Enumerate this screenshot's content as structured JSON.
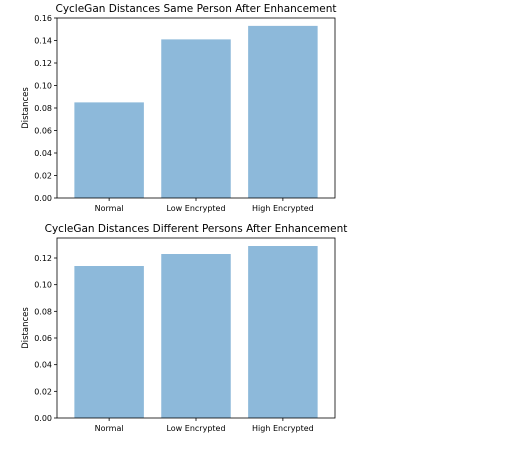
{
  "chart_data": [
    {
      "type": "bar",
      "title": "CycleGan Distances Same Person After Enhancement",
      "xlabel": "",
      "ylabel": "Distances",
      "categories": [
        "Normal",
        "Low Encrypted",
        "High Encrypted"
      ],
      "values": [
        0.085,
        0.141,
        0.153
      ],
      "ylim": [
        0,
        0.16
      ],
      "yticks": [
        0.0,
        0.02,
        0.04,
        0.06,
        0.08,
        0.1,
        0.12,
        0.14,
        0.16
      ],
      "ytick_labels": [
        "0.00",
        "0.02",
        "0.04",
        "0.06",
        "0.08",
        "0.10",
        "0.12",
        "0.14",
        "0.16"
      ],
      "bar_color": "#8db9da",
      "grid": false,
      "legend": "none"
    },
    {
      "type": "bar",
      "title": "CycleGan Distances Different Persons After Enhancement",
      "xlabel": "",
      "ylabel": "Distances",
      "categories": [
        "Normal",
        "Low Encrypted",
        "High Encrypted"
      ],
      "values": [
        0.114,
        0.123,
        0.129
      ],
      "ylim": [
        0,
        0.135
      ],
      "yticks": [
        0.0,
        0.02,
        0.04,
        0.06,
        0.08,
        0.1,
        0.12
      ],
      "ytick_labels": [
        "0.00",
        "0.02",
        "0.04",
        "0.06",
        "0.08",
        "0.10",
        "0.12"
      ],
      "bar_color": "#8db9da",
      "grid": false,
      "legend": "none"
    }
  ]
}
